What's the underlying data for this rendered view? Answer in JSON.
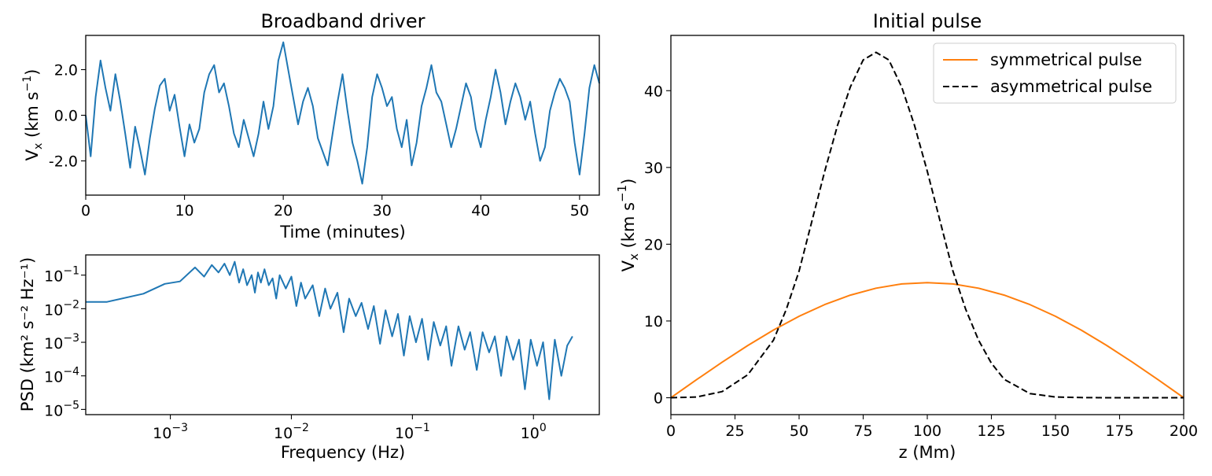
{
  "chart_data": [
    {
      "id": "driver",
      "type": "line",
      "title": "Broadband driver",
      "xlabel": "Time (minutes)",
      "ylabel_main": "V",
      "ylabel_sub": "x",
      "ylabel_unit": " (km s",
      "ylabel_exp": "−1",
      "ylabel_close": ")",
      "xlim": [
        0,
        52
      ],
      "ylim": [
        -3.5,
        3.5
      ],
      "xticks": [
        0,
        10,
        20,
        30,
        40,
        50
      ],
      "xtick_labels": [
        "0",
        "10",
        "20",
        "30",
        "40",
        "50"
      ],
      "yticks": [
        -2,
        0,
        2
      ],
      "ytick_labels": [
        "-2.0",
        "0.0",
        "2.0"
      ],
      "color": "#1f77b4",
      "series": [
        {
          "x": [
            0,
            0.5,
            1,
            1.5,
            2,
            2.5,
            3,
            3.5,
            4,
            4.5,
            5,
            5.5,
            6,
            6.5,
            7,
            7.5,
            8,
            8.5,
            9,
            9.5,
            10,
            10.5,
            11,
            11.5,
            12,
            12.5,
            13,
            13.5,
            14,
            14.5,
            15,
            15.5,
            16,
            16.5,
            17,
            17.5,
            18,
            18.5,
            19,
            19.5,
            20,
            20.5,
            21,
            21.5,
            22,
            22.5,
            23,
            23.5,
            24,
            24.5,
            25,
            25.5,
            26,
            26.5,
            27,
            27.5,
            28,
            28.5,
            29,
            29.5,
            30,
            30.5,
            31,
            31.5,
            32,
            32.5,
            33,
            33.5,
            34,
            34.5,
            35,
            35.5,
            36,
            36.5,
            37,
            37.5,
            38,
            38.5,
            39,
            39.5,
            40,
            40.5,
            41,
            41.5,
            42,
            42.5,
            43,
            43.5,
            44,
            44.5,
            45,
            45.5,
            46,
            46.5,
            47,
            47.5,
            48,
            48.5,
            49,
            49.5,
            50,
            50.5,
            51,
            51.5,
            52
          ],
          "y": [
            0.0,
            -1.8,
            0.8,
            2.4,
            1.2,
            0.2,
            1.8,
            0.6,
            -0.8,
            -2.3,
            -0.5,
            -1.5,
            -2.6,
            -1.0,
            0.3,
            1.3,
            1.6,
            0.2,
            0.9,
            -0.5,
            -1.8,
            -0.4,
            -1.2,
            -0.6,
            1.0,
            1.8,
            2.2,
            1.0,
            1.4,
            0.4,
            -0.8,
            -1.4,
            -0.2,
            -1.0,
            -1.8,
            -0.8,
            0.6,
            -0.6,
            0.4,
            2.4,
            3.2,
            2.0,
            0.8,
            -0.4,
            0.6,
            1.2,
            0.4,
            -1.0,
            -1.6,
            -2.2,
            -0.8,
            0.6,
            1.8,
            0.2,
            -1.2,
            -2.0,
            -3.0,
            -1.4,
            0.8,
            1.8,
            1.2,
            0.4,
            0.8,
            -0.6,
            -1.4,
            -0.2,
            -2.2,
            -1.2,
            0.4,
            1.2,
            2.2,
            1.0,
            0.6,
            -0.4,
            -1.4,
            -0.6,
            0.4,
            1.4,
            0.8,
            -0.6,
            -1.4,
            -0.2,
            0.8,
            2.0,
            1.0,
            -0.4,
            0.6,
            1.4,
            0.8,
            -0.2,
            0.6,
            -0.8,
            -2.0,
            -1.4,
            0.2,
            1.0,
            1.6,
            1.2,
            0.6,
            -1.2,
            -2.6,
            -0.8,
            1.2,
            2.2,
            1.4
          ]
        }
      ]
    },
    {
      "id": "psd",
      "type": "line",
      "xscale": "log",
      "yscale": "log",
      "xlabel": "Frequency (Hz)",
      "ylabel_text": "PSD (km² s⁻² Hz⁻¹)",
      "xlim": [
        0.0002,
        3.5
      ],
      "ylim": [
        7e-06,
        0.4
      ],
      "xticks": [
        0.001,
        0.01,
        0.1,
        1
      ],
      "xtick_bases": [
        "10",
        "10",
        "10",
        "10"
      ],
      "xtick_exps": [
        "−3",
        "−2",
        "−1",
        "0"
      ],
      "yticks": [
        1e-05,
        0.0001,
        0.001,
        0.01,
        0.1
      ],
      "ytick_bases": [
        "10",
        "10",
        "10",
        "10",
        "10"
      ],
      "ytick_exps": [
        "−5",
        "−4",
        "−3",
        "−2",
        "−1"
      ],
      "color": "#1f77b4",
      "series": [
        {
          "x": [
            0.0002,
            0.0003,
            0.0006,
            0.0009,
            0.0012,
            0.0016,
            0.0019,
            0.0022,
            0.0025,
            0.0028,
            0.0031,
            0.0034,
            0.0037,
            0.004,
            0.0043,
            0.0047,
            0.005,
            0.0053,
            0.0056,
            0.006,
            0.0065,
            0.007,
            0.0075,
            0.008,
            0.009,
            0.01,
            0.011,
            0.012,
            0.013,
            0.015,
            0.017,
            0.019,
            0.021,
            0.024,
            0.027,
            0.03,
            0.034,
            0.038,
            0.043,
            0.048,
            0.054,
            0.06,
            0.068,
            0.076,
            0.085,
            0.095,
            0.107,
            0.12,
            0.135,
            0.15,
            0.17,
            0.19,
            0.21,
            0.24,
            0.27,
            0.3,
            0.34,
            0.38,
            0.43,
            0.48,
            0.54,
            0.6,
            0.68,
            0.76,
            0.85,
            0.95,
            1.07,
            1.2,
            1.35,
            1.5,
            1.7,
            1.9,
            2.1
          ],
          "y": [
            0.016,
            0.016,
            0.028,
            0.055,
            0.065,
            0.17,
            0.09,
            0.2,
            0.12,
            0.22,
            0.1,
            0.25,
            0.06,
            0.15,
            0.05,
            0.1,
            0.03,
            0.12,
            0.06,
            0.15,
            0.05,
            0.08,
            0.02,
            0.1,
            0.04,
            0.09,
            0.012,
            0.06,
            0.02,
            0.05,
            0.006,
            0.04,
            0.01,
            0.03,
            0.002,
            0.02,
            0.006,
            0.015,
            0.0025,
            0.012,
            0.0009,
            0.009,
            0.0015,
            0.007,
            0.0004,
            0.006,
            0.001,
            0.005,
            0.0003,
            0.004,
            0.0008,
            0.003,
            0.0002,
            0.003,
            0.0006,
            0.002,
            0.00015,
            0.002,
            0.0005,
            0.0015,
            0.0001,
            0.0015,
            0.0003,
            0.0012,
            4e-05,
            0.0012,
            0.0002,
            0.001,
            2e-05,
            0.0012,
            0.0001,
            0.0008,
            0.0015
          ]
        }
      ]
    },
    {
      "id": "pulse",
      "type": "line",
      "title": "Initial pulse",
      "xlabel": "z (Mm)",
      "ylabel_main": "V",
      "ylabel_sub": "x",
      "ylabel_unit": " (km s",
      "ylabel_exp": "−1",
      "ylabel_close": ")",
      "xlim": [
        0,
        200
      ],
      "ylim": [
        -2.2,
        47.2
      ],
      "xticks": [
        0,
        25,
        50,
        75,
        100,
        125,
        150,
        175,
        200
      ],
      "xtick_labels": [
        "0",
        "25",
        "50",
        "75",
        "100",
        "125",
        "150",
        "175",
        "200"
      ],
      "yticks": [
        0,
        10,
        20,
        30,
        40
      ],
      "ytick_labels": [
        "0",
        "10",
        "20",
        "30",
        "40"
      ],
      "legend_position": "top-right",
      "series": [
        {
          "name": "symmetrical pulse",
          "color": "#ff7f0e",
          "dash": "solid",
          "x": [
            0,
            10,
            20,
            30,
            40,
            50,
            60,
            70,
            80,
            90,
            100,
            110,
            120,
            130,
            140,
            150,
            160,
            170,
            180,
            190,
            200
          ],
          "y": [
            0,
            2.35,
            4.64,
            6.81,
            8.82,
            10.61,
            12.14,
            13.37,
            14.27,
            14.82,
            15.0,
            14.82,
            14.27,
            13.37,
            12.14,
            10.61,
            8.82,
            6.81,
            4.64,
            2.35,
            0
          ]
        },
        {
          "name": "asymmetrical pulse",
          "color": "#000000",
          "dash": "dashed",
          "x": [
            0,
            10,
            20,
            30,
            40,
            45,
            50,
            55,
            60,
            65,
            70,
            75,
            80,
            85,
            90,
            95,
            100,
            105,
            110,
            115,
            120,
            125,
            130,
            140,
            150,
            160,
            170,
            180,
            190,
            200
          ],
          "y": [
            0,
            0.1,
            0.8,
            3.0,
            7.5,
            11.5,
            16.5,
            23.0,
            29.5,
            35.5,
            40.5,
            44.0,
            45.0,
            44.0,
            40.5,
            35.5,
            29.5,
            23.0,
            16.5,
            11.5,
            7.5,
            4.5,
            2.4,
            0.55,
            0.1,
            0.02,
            0.0,
            0.0,
            0.0,
            0.0
          ]
        }
      ]
    }
  ]
}
